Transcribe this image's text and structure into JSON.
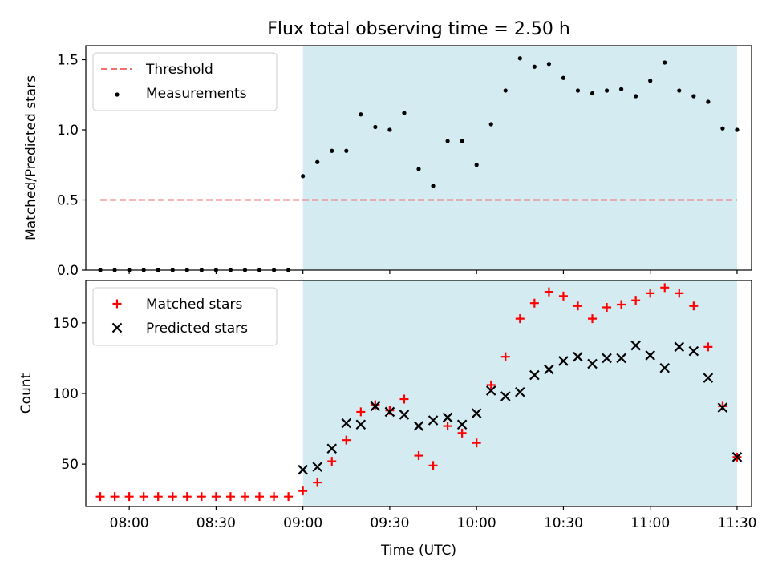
{
  "chart_data": [
    {
      "type": "scatter",
      "title": "Flux total observing time = 2.50 h",
      "xlabel": "",
      "ylabel": "Matched/Predicted stars",
      "ylim": [
        0,
        1.6
      ],
      "yticks": [
        "0.0",
        "0.5",
        "1.0",
        "1.5"
      ],
      "xlim": [
        "07:45",
        "11:35"
      ],
      "grid": false,
      "legend_position": "top-left",
      "shaded_interval": [
        "09:00",
        "11:30"
      ],
      "threshold": {
        "name": "Threshold",
        "value": 0.5,
        "x_start": "07:50",
        "x_end": "11:30",
        "style": "dashed",
        "color": "#f07070"
      },
      "series": [
        {
          "name": "Measurements",
          "marker": "dot",
          "color": "#000000",
          "points": [
            [
              "07:50",
              0.0
            ],
            [
              "07:55",
              0.0
            ],
            [
              "08:00",
              0.0
            ],
            [
              "08:05",
              0.0
            ],
            [
              "08:10",
              0.0
            ],
            [
              "08:15",
              0.0
            ],
            [
              "08:20",
              0.0
            ],
            [
              "08:25",
              0.0
            ],
            [
              "08:30",
              0.0
            ],
            [
              "08:35",
              0.0
            ],
            [
              "08:40",
              0.0
            ],
            [
              "08:45",
              0.0
            ],
            [
              "08:50",
              0.0
            ],
            [
              "08:55",
              0.0
            ],
            [
              "09:00",
              0.67
            ],
            [
              "09:05",
              0.77
            ],
            [
              "09:10",
              0.85
            ],
            [
              "09:15",
              0.85
            ],
            [
              "09:20",
              1.11
            ],
            [
              "09:25",
              1.02
            ],
            [
              "09:30",
              1.0
            ],
            [
              "09:35",
              1.12
            ],
            [
              "09:40",
              0.72
            ],
            [
              "09:45",
              0.6
            ],
            [
              "09:50",
              0.92
            ],
            [
              "09:55",
              0.92
            ],
            [
              "10:00",
              0.75
            ],
            [
              "10:05",
              1.04
            ],
            [
              "10:10",
              1.28
            ],
            [
              "10:15",
              1.51
            ],
            [
              "10:20",
              1.45
            ],
            [
              "10:25",
              1.47
            ],
            [
              "10:30",
              1.37
            ],
            [
              "10:35",
              1.28
            ],
            [
              "10:40",
              1.26
            ],
            [
              "10:45",
              1.28
            ],
            [
              "10:50",
              1.29
            ],
            [
              "10:55",
              1.24
            ],
            [
              "11:00",
              1.35
            ],
            [
              "11:05",
              1.48
            ],
            [
              "11:10",
              1.28
            ],
            [
              "11:15",
              1.24
            ],
            [
              "11:20",
              1.2
            ],
            [
              "11:25",
              1.01
            ],
            [
              "11:30",
              1.0
            ]
          ]
        }
      ]
    },
    {
      "type": "scatter",
      "title": "",
      "xlabel": "Time (UTC)",
      "ylabel": "Count",
      "ylim": [
        20,
        180
      ],
      "yticks": [
        "50",
        "100",
        "150"
      ],
      "xlim": [
        "07:45",
        "11:35"
      ],
      "xticks": [
        "08:00",
        "08:30",
        "09:00",
        "09:30",
        "10:00",
        "10:30",
        "11:00",
        "11:30"
      ],
      "grid": false,
      "legend_position": "top-left",
      "shaded_interval": [
        "09:00",
        "11:30"
      ],
      "series": [
        {
          "name": "Matched stars",
          "marker": "plus",
          "color": "#ff0000",
          "points": [
            [
              "07:50",
              27
            ],
            [
              "07:55",
              27
            ],
            [
              "08:00",
              27
            ],
            [
              "08:05",
              27
            ],
            [
              "08:10",
              27
            ],
            [
              "08:15",
              27
            ],
            [
              "08:20",
              27
            ],
            [
              "08:25",
              27
            ],
            [
              "08:30",
              27
            ],
            [
              "08:35",
              27
            ],
            [
              "08:40",
              27
            ],
            [
              "08:45",
              27
            ],
            [
              "08:50",
              27
            ],
            [
              "08:55",
              27
            ],
            [
              "09:00",
              31
            ],
            [
              "09:05",
              37
            ],
            [
              "09:10",
              52
            ],
            [
              "09:15",
              67
            ],
            [
              "09:20",
              87
            ],
            [
              "09:25",
              92
            ],
            [
              "09:30",
              88
            ],
            [
              "09:35",
              96
            ],
            [
              "09:40",
              56
            ],
            [
              "09:45",
              49
            ],
            [
              "09:50",
              77
            ],
            [
              "09:55",
              72
            ],
            [
              "10:00",
              65
            ],
            [
              "10:05",
              106
            ],
            [
              "10:10",
              126
            ],
            [
              "10:15",
              153
            ],
            [
              "10:20",
              164
            ],
            [
              "10:25",
              172
            ],
            [
              "10:30",
              169
            ],
            [
              "10:35",
              162
            ],
            [
              "10:40",
              153
            ],
            [
              "10:45",
              161
            ],
            [
              "10:50",
              163
            ],
            [
              "10:55",
              166
            ],
            [
              "11:00",
              171
            ],
            [
              "11:05",
              175
            ],
            [
              "11:10",
              171
            ],
            [
              "11:15",
              162
            ],
            [
              "11:20",
              133
            ],
            [
              "11:25",
              91
            ],
            [
              "11:30",
              55
            ]
          ]
        },
        {
          "name": "Predicted stars",
          "marker": "x",
          "color": "#000000",
          "points": [
            [
              "09:00",
              46
            ],
            [
              "09:05",
              48
            ],
            [
              "09:10",
              61
            ],
            [
              "09:15",
              79
            ],
            [
              "09:20",
              78
            ],
            [
              "09:25",
              91
            ],
            [
              "09:30",
              87
            ],
            [
              "09:35",
              85
            ],
            [
              "09:40",
              77
            ],
            [
              "09:45",
              81
            ],
            [
              "09:50",
              83
            ],
            [
              "09:55",
              78
            ],
            [
              "10:00",
              86
            ],
            [
              "10:05",
              102
            ],
            [
              "10:10",
              98
            ],
            [
              "10:15",
              101
            ],
            [
              "10:20",
              113
            ],
            [
              "10:25",
              117
            ],
            [
              "10:30",
              123
            ],
            [
              "10:35",
              126
            ],
            [
              "10:40",
              121
            ],
            [
              "10:45",
              125
            ],
            [
              "10:50",
              125
            ],
            [
              "10:55",
              134
            ],
            [
              "11:00",
              127
            ],
            [
              "11:05",
              118
            ],
            [
              "11:10",
              133
            ],
            [
              "11:15",
              130
            ],
            [
              "11:20",
              111
            ],
            [
              "11:25",
              90
            ],
            [
              "11:30",
              55
            ]
          ]
        }
      ]
    }
  ],
  "colors": {
    "shade": "#add8e6",
    "threshold": "#f07070",
    "matched": "#ff0000",
    "predicted": "#000000",
    "measurements": "#000000"
  }
}
